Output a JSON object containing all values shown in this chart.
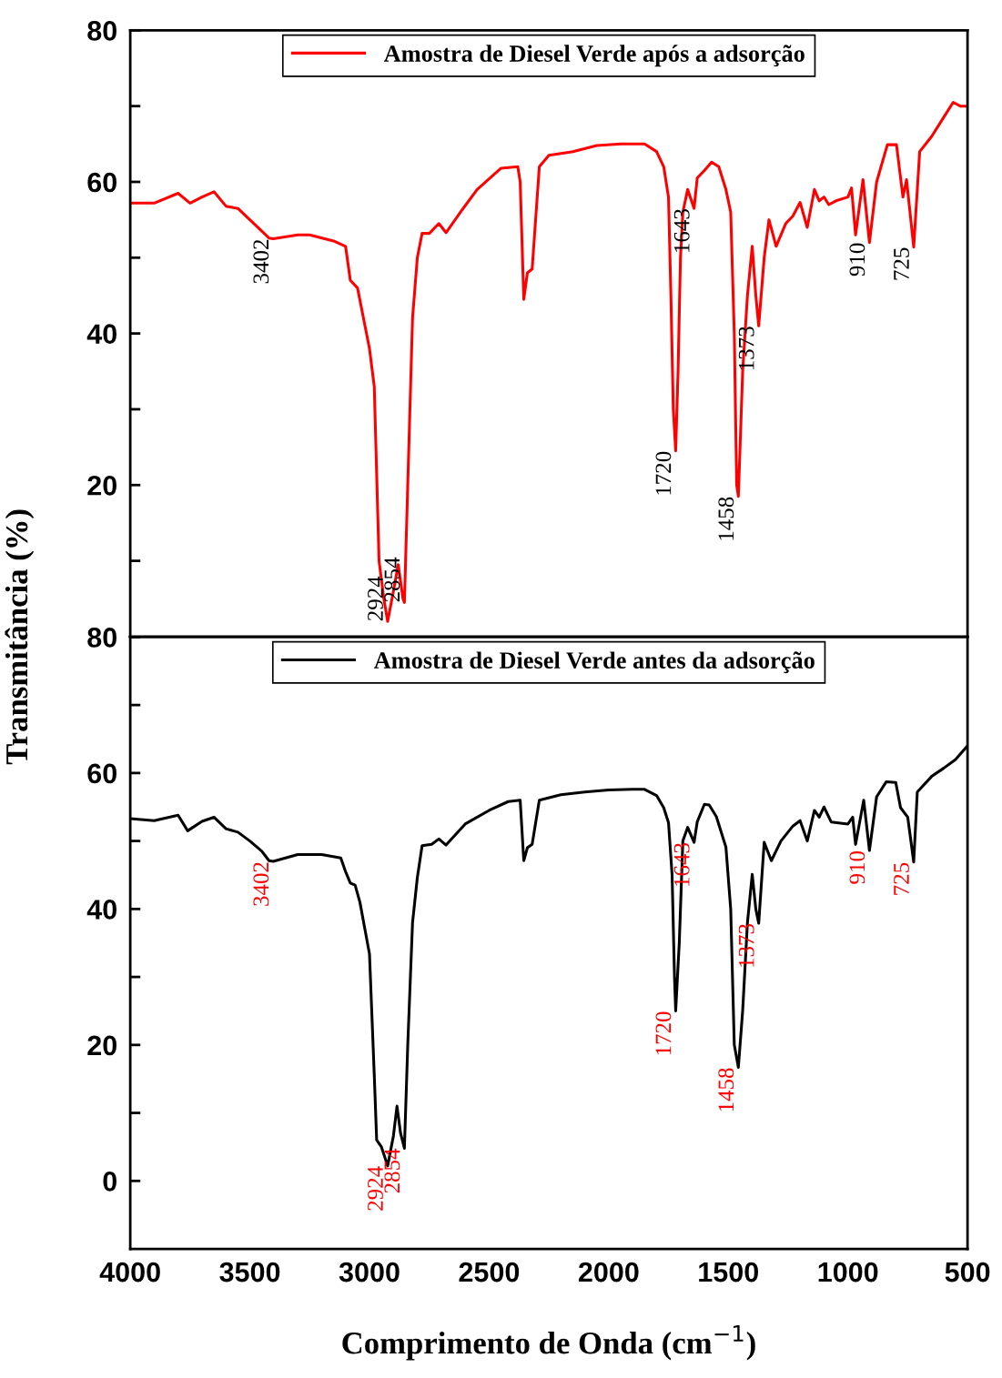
{
  "chart_data": [
    {
      "type": "line",
      "ylabel": "Transmitância (%)",
      "xlim": [
        4000,
        500
      ],
      "xticks": [
        4000,
        3500,
        3000,
        2500,
        2000,
        1500,
        1000,
        500
      ],
      "ylim": [
        0,
        80
      ],
      "yticks": [
        {
          "value": 10,
          "label": null
        },
        20,
        {
          "value": 30,
          "label": null
        },
        40,
        {
          "value": 50,
          "label": null
        },
        60,
        {
          "value": 70,
          "label": null
        },
        80
      ],
      "tick_labels": "y",
      "legend": "top",
      "grid": false,
      "series": [
        {
          "name": "Amostra de Diesel Verde após a adsorção",
          "color": "#ff0000",
          "x": [
            4000,
            3900,
            3800,
            3750,
            3700,
            3650,
            3600,
            3550,
            3500,
            3450,
            3420,
            3402,
            3300,
            3250,
            3150,
            3100,
            3080,
            3050,
            3000,
            2980,
            2960,
            2940,
            2924,
            2900,
            2880,
            2860,
            2854,
            2840,
            2820,
            2800,
            2780,
            2750,
            2710,
            2680,
            2620,
            2550,
            2450,
            2380,
            2370,
            2355,
            2340,
            2320,
            2290,
            2250,
            2150,
            2050,
            1950,
            1850,
            1800,
            1770,
            1750,
            1740,
            1730,
            1720,
            1710,
            1700,
            1690,
            1670,
            1643,
            1630,
            1600,
            1570,
            1540,
            1510,
            1490,
            1475,
            1465,
            1458,
            1440,
            1420,
            1400,
            1385,
            1373,
            1350,
            1330,
            1300,
            1260,
            1230,
            1200,
            1170,
            1140,
            1120,
            1100,
            1080,
            1050,
            1000,
            985,
            968,
            937,
            910,
            880,
            835,
            797,
            770,
            755,
            725,
            700,
            650,
            600,
            560,
            530,
            500
          ],
          "values": [
            57.2,
            57.2,
            58.5,
            57.2,
            58.0,
            58.7,
            56.8,
            56.5,
            55.0,
            53.5,
            52.6,
            52.5,
            53.0,
            53.0,
            52.2,
            51.5,
            47,
            46,
            38,
            33,
            10,
            5,
            2,
            6,
            9.5,
            5,
            4.5,
            20,
            42,
            50,
            53.2,
            53.2,
            54.5,
            53.3,
            56,
            59,
            61.8,
            62,
            60,
            44.5,
            48,
            48.5,
            62,
            63.5,
            64,
            64.8,
            65,
            65,
            64,
            62,
            58,
            45,
            30,
            24.5,
            35,
            50,
            56,
            59,
            56.5,
            60.5,
            61.5,
            62.6,
            62,
            59,
            56,
            40,
            20,
            18.5,
            35,
            45,
            51.5,
            45,
            41,
            50,
            55,
            51.5,
            54.5,
            55.5,
            57.3,
            54,
            59,
            57.5,
            58,
            57,
            57.5,
            58,
            59.2,
            53,
            60.3,
            52,
            60,
            64.9,
            64.9,
            58,
            60.3,
            51.4,
            64,
            66,
            68.5,
            70.5,
            70,
            70
          ]
        }
      ],
      "annotations": [
        {
          "text": "3402",
          "x": 3402,
          "y": 52.5
        },
        {
          "text": "2924",
          "x": 2924,
          "y": 2
        },
        {
          "text": "2854",
          "x": 2854,
          "y": 4.5
        },
        {
          "text": "1720",
          "x": 1720,
          "y": 24.5
        },
        {
          "text": "1643",
          "x": 1643,
          "y": 56.5
        },
        {
          "text": "1458",
          "x": 1458,
          "y": 18.5
        },
        {
          "text": "1373",
          "x": 1373,
          "y": 41
        },
        {
          "text": "910",
          "x": 910,
          "y": 52
        },
        {
          "text": "725",
          "x": 725,
          "y": 51.4
        }
      ]
    },
    {
      "type": "line",
      "xlabel": "Comprimento de Onda (cm$^{−1}$)",
      "xlim": [
        4000,
        500
      ],
      "xticks": [
        4000,
        3500,
        3000,
        2500,
        2000,
        1500,
        1000,
        500
      ],
      "ylim": [
        -10,
        80
      ],
      "yticks": [
        0,
        {
          "value": 10,
          "label": null
        },
        20,
        {
          "value": 30,
          "label": null
        },
        40,
        {
          "value": 50,
          "label": null
        },
        60,
        {
          "value": 70,
          "label": null
        },
        80
      ],
      "legend": "top",
      "grid": false,
      "series": [
        {
          "name": "Amostra de Diesel Verde antes da adsorção",
          "color": "#000000",
          "x": [
            4000,
            3900,
            3800,
            3760,
            3700,
            3650,
            3600,
            3550,
            3500,
            3450,
            3420,
            3402,
            3300,
            3200,
            3120,
            3100,
            3080,
            3060,
            3040,
            3000,
            2980,
            2970,
            2950,
            2924,
            2900,
            2885,
            2870,
            2854,
            2840,
            2820,
            2800,
            2780,
            2740,
            2710,
            2680,
            2600,
            2500,
            2420,
            2370,
            2355,
            2340,
            2320,
            2290,
            2200,
            2100,
            2000,
            1900,
            1850,
            1800,
            1770,
            1750,
            1735,
            1725,
            1720,
            1705,
            1690,
            1670,
            1643,
            1630,
            1600,
            1580,
            1550,
            1510,
            1490,
            1475,
            1458,
            1440,
            1420,
            1400,
            1385,
            1373,
            1350,
            1320,
            1280,
            1230,
            1200,
            1170,
            1140,
            1120,
            1100,
            1070,
            1000,
            980,
            968,
            934,
            910,
            880,
            840,
            800,
            780,
            750,
            725,
            710,
            650,
            600,
            550,
            500
          ],
          "values": [
            53.3,
            53,
            53.8,
            51.5,
            52.9,
            53.5,
            51.8,
            51.3,
            50,
            48.5,
            47.1,
            47,
            48,
            48,
            47.5,
            45.5,
            43.8,
            43.5,
            41,
            33.4,
            15.6,
            6,
            5,
            2.2,
            6.6,
            11,
            7,
            4.8,
            20,
            38,
            44.6,
            49.3,
            49.5,
            50.3,
            49.4,
            52.5,
            54.5,
            55.8,
            56,
            47.1,
            49,
            49.5,
            56,
            56.8,
            57.2,
            57.5,
            57.6,
            57.6,
            56.7,
            54.9,
            52.7,
            45,
            30,
            25,
            35,
            50,
            52,
            49.8,
            52.8,
            55.4,
            55.3,
            53.6,
            49.1,
            40,
            20,
            16.7,
            25,
            38,
            45.1,
            40,
            37.9,
            49.8,
            47.1,
            50,
            52.2,
            53,
            50,
            54.5,
            53.5,
            55,
            52.8,
            52.5,
            53.5,
            49.5,
            56,
            48.6,
            56.5,
            58.7,
            58.6,
            54.9,
            53.5,
            46.9,
            57.2,
            59.5,
            60.7,
            62,
            64
          ]
        }
      ],
      "annotations": [
        {
          "text": "3402",
          "x": 3402,
          "y": 47
        },
        {
          "text": "2924",
          "x": 2924,
          "y": 2.2
        },
        {
          "text": "2854",
          "x": 2854,
          "y": 4.8
        },
        {
          "text": "1720",
          "x": 1720,
          "y": 25
        },
        {
          "text": "1643",
          "x": 1643,
          "y": 49.8
        },
        {
          "text": "1458",
          "x": 1458,
          "y": 16.7
        },
        {
          "text": "1373",
          "x": 1373,
          "y": 37.9
        },
        {
          "text": "910",
          "x": 910,
          "y": 48.6
        },
        {
          "text": "725",
          "x": 725,
          "y": 46.9
        }
      ]
    }
  ]
}
